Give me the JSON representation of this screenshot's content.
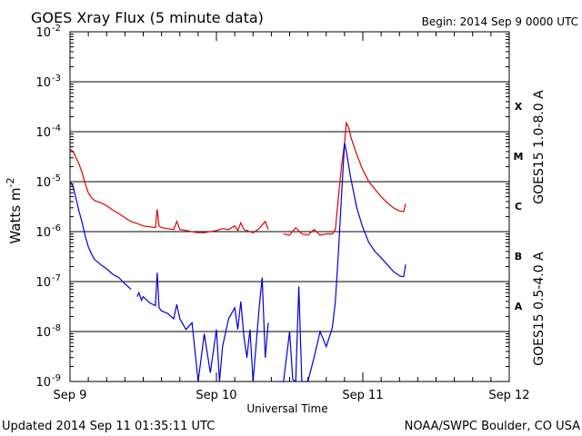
{
  "header": {
    "title": "GOES Xray Flux (5 minute data)",
    "begin": "Begin:  2014 Sep 9 0000 UTC"
  },
  "footer": {
    "updated": "Updated 2014 Sep 11 01:35:11 UTC",
    "credit": "NOAA/SWPC Boulder, CO USA"
  },
  "chart_data": {
    "type": "line",
    "title": "GOES Xray Flux (5 minute data)",
    "xlabel": "Universal Time",
    "ylabel": "Watts m",
    "ylabel_sup": "-2",
    "x_unit": "hours since 2014 Sep 9 0000 UTC",
    "xlim": [
      0,
      72
    ],
    "ylim": [
      1e-09,
      0.01
    ],
    "yscale": "log",
    "grid": "horizontal at each decade",
    "x_ticks": [
      {
        "x": 0,
        "label": "Sep 9"
      },
      {
        "x": 24,
        "label": "Sep 10"
      },
      {
        "x": 48,
        "label": "Sep 11"
      },
      {
        "x": 72,
        "label": "Sep 12"
      }
    ],
    "y_ticks": [
      {
        "value": 0.01,
        "base": "10",
        "exp": "-2"
      },
      {
        "value": 0.001,
        "base": "10",
        "exp": "-3"
      },
      {
        "value": 0.0001,
        "base": "10",
        "exp": "-4"
      },
      {
        "value": 1e-05,
        "base": "10",
        "exp": "-5"
      },
      {
        "value": 1e-06,
        "base": "10",
        "exp": "-6"
      },
      {
        "value": 1e-07,
        "base": "10",
        "exp": "-7"
      },
      {
        "value": 1e-08,
        "base": "10",
        "exp": "-8"
      },
      {
        "value": 1e-09,
        "base": "10",
        "exp": "-9"
      }
    ],
    "flare_classes": [
      {
        "label": "X",
        "value": 0.00032
      },
      {
        "label": "M",
        "value": 3.2e-05
      },
      {
        "label": "C",
        "value": 3.2e-06
      },
      {
        "label": "B",
        "value": 3.2e-07
      },
      {
        "label": "A",
        "value": 3.2e-08
      }
    ],
    "series": [
      {
        "name": "GOES15 1.0-8.0 A",
        "color": "#dd0000",
        "segments": [
          [
            [
              0,
              4.5e-05
            ],
            [
              0.5,
              4e-05
            ],
            [
              1,
              3e-05
            ],
            [
              1.5,
              2.2e-05
            ],
            [
              2,
              1.5e-05
            ],
            [
              2.5,
              9e-06
            ],
            [
              3,
              6e-06
            ],
            [
              3.5,
              4.8e-06
            ],
            [
              4,
              4.2e-06
            ],
            [
              5,
              3.8e-06
            ],
            [
              6,
              3.3e-06
            ],
            [
              7,
              2.7e-06
            ],
            [
              8,
              2.3e-06
            ],
            [
              9,
              1.9e-06
            ],
            [
              10,
              1.6e-06
            ],
            [
              11,
              1.45e-06
            ],
            [
              12,
              1.3e-06
            ],
            [
              13,
              1.25e-06
            ],
            [
              14,
              1.2e-06
            ],
            [
              14.3,
              2.8e-06
            ],
            [
              14.6,
              1.3e-06
            ],
            [
              15,
              1.2e-06
            ],
            [
              16,
              1.15e-06
            ],
            [
              17,
              1.1e-06
            ],
            [
              17.5,
              1.6e-06
            ],
            [
              18,
              1.1e-06
            ],
            [
              19,
              1.05e-06
            ],
            [
              20,
              1e-06
            ],
            [
              21,
              9.5e-07
            ],
            [
              22,
              9.5e-07
            ],
            [
              23,
              1e-06
            ],
            [
              24,
              1.05e-06
            ],
            [
              25,
              1.15e-06
            ],
            [
              26,
              1.1e-06
            ],
            [
              27,
              1.3e-06
            ],
            [
              27.5,
              1.05e-06
            ],
            [
              28,
              1.5e-06
            ],
            [
              28.5,
              1.1e-06
            ],
            [
              29,
              1.05e-06
            ],
            [
              30,
              9.5e-07
            ],
            [
              31,
              1.15e-06
            ],
            [
              32,
              1.6e-06
            ],
            [
              32.5,
              1.1e-06
            ]
          ],
          [
            [
              35,
              9e-07
            ],
            [
              36,
              8.5e-07
            ],
            [
              37,
              1.2e-06
            ],
            [
              38,
              9e-07
            ],
            [
              39,
              8.5e-07
            ],
            [
              40,
              1.1e-06
            ],
            [
              41,
              8.5e-07
            ],
            [
              42,
              9e-07
            ],
            [
              43,
              9e-07
            ],
            [
              43.5,
              1.1e-06
            ],
            [
              44,
              5e-06
            ],
            [
              44.5,
              2e-05
            ],
            [
              45,
              6e-05
            ],
            [
              45.3,
              0.00015
            ],
            [
              45.7,
              0.00012
            ],
            [
              46,
              8e-05
            ],
            [
              47,
              3.5e-05
            ],
            [
              48,
              1.7e-05
            ],
            [
              49,
              1e-05
            ],
            [
              50,
              7e-06
            ],
            [
              51,
              5e-06
            ],
            [
              52,
              3.8e-06
            ],
            [
              53,
              3e-06
            ],
            [
              54,
              2.6e-06
            ],
            [
              54.7,
              2.5e-06
            ],
            [
              55,
              3.6e-06
            ]
          ]
        ]
      },
      {
        "name": "GOES15 0.5-4.0 A",
        "color": "#0000dd",
        "segments": [
          [
            [
              0,
              1e-05
            ],
            [
              0.5,
              8e-06
            ],
            [
              1,
              4.5e-06
            ],
            [
              1.5,
              2.5e-06
            ],
            [
              2,
              1.5e-06
            ],
            [
              2.5,
              8e-07
            ],
            [
              3,
              5e-07
            ],
            [
              3.5,
              3.6e-07
            ],
            [
              4,
              2.8e-07
            ],
            [
              5,
              2.2e-07
            ],
            [
              6,
              1.8e-07
            ],
            [
              7,
              1.4e-07
            ],
            [
              8,
              1.2e-07
            ],
            [
              9,
              9e-08
            ],
            [
              10,
              7e-08
            ]
          ],
          [
            [
              11,
              5e-08
            ],
            [
              11.3,
              6e-08
            ],
            [
              11.7,
              4.2e-08
            ],
            [
              12,
              5e-08
            ],
            [
              13,
              3.8e-08
            ],
            [
              14,
              3.3e-08
            ],
            [
              14.3,
              1.5e-07
            ],
            [
              14.6,
              3e-08
            ],
            [
              15,
              2.6e-08
            ],
            [
              16,
              2.3e-08
            ],
            [
              17,
              1.8e-08
            ],
            [
              17.5,
              3.5e-08
            ],
            [
              18,
              1.8e-08
            ],
            [
              19,
              1.1e-08
            ],
            [
              20,
              1.5e-08
            ],
            [
              21,
              1e-09
            ],
            [
              22,
              9e-09
            ],
            [
              23,
              1.5e-09
            ],
            [
              24,
              1.1e-08
            ],
            [
              24.5,
              1e-09
            ],
            [
              25,
              5e-09
            ],
            [
              26,
              1.8e-08
            ],
            [
              27,
              3e-08
            ],
            [
              27.5,
              1.1e-08
            ],
            [
              28,
              4e-08
            ],
            [
              28.5,
              8e-09
            ],
            [
              29,
              3e-09
            ],
            [
              29.5,
              1.1e-08
            ],
            [
              30,
              1e-09
            ],
            [
              31,
              3e-08
            ],
            [
              31.5,
              1.2e-07
            ],
            [
              32,
              3e-09
            ],
            [
              32.5,
              1.5e-08
            ]
          ],
          [
            [
              34,
              1e-09
            ],
            [
              35,
              1e-09
            ],
            [
              36,
              1e-08
            ],
            [
              36.5,
              1.1e-09
            ],
            [
              37,
              1e-09
            ],
            [
              37.5,
              8e-08
            ],
            [
              38,
              1e-09
            ],
            [
              39,
              1e-09
            ],
            [
              40,
              3e-09
            ],
            [
              41,
              1e-08
            ],
            [
              42,
              5e-09
            ],
            [
              43,
              1.2e-08
            ],
            [
              43.5,
              4e-08
            ],
            [
              44,
              4e-07
            ],
            [
              44.5,
              5e-06
            ],
            [
              45,
              6e-05
            ],
            [
              45.3,
              4e-05
            ],
            [
              46,
              1.2e-05
            ],
            [
              47,
              3e-06
            ],
            [
              48,
              1.2e-06
            ],
            [
              49,
              6e-07
            ],
            [
              50,
              4e-07
            ],
            [
              51,
              3e-07
            ],
            [
              52,
              2.2e-07
            ],
            [
              53,
              1.6e-07
            ],
            [
              54,
              1.3e-07
            ],
            [
              54.7,
              1.25e-07
            ],
            [
              55,
              2.2e-07
            ]
          ]
        ]
      }
    ]
  }
}
